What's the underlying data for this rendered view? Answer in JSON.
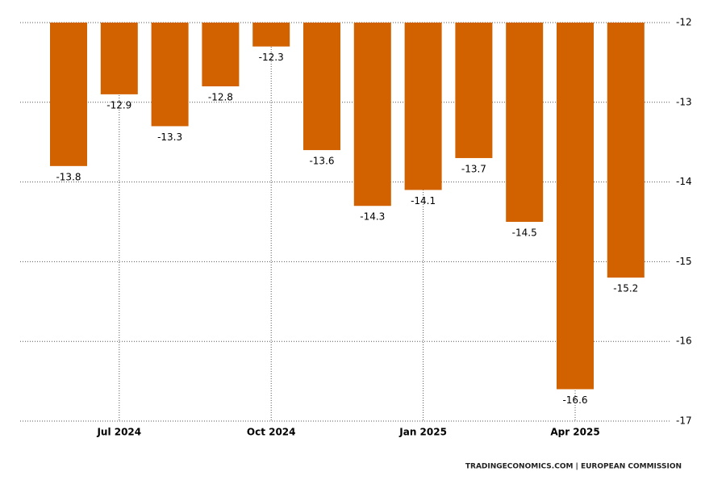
{
  "chart_data": {
    "type": "bar",
    "categories": [
      null,
      "Jul 2024",
      null,
      null,
      "Oct 2024",
      null,
      null,
      "Jan 2025",
      null,
      null,
      "Apr 2025",
      null
    ],
    "values": [
      -13.8,
      -12.9,
      -13.3,
      -12.8,
      -12.3,
      -13.6,
      -14.3,
      -14.1,
      -13.7,
      -14.5,
      -16.6,
      -15.2
    ],
    "color": "#d26200",
    "ylim": [
      -17,
      -12
    ],
    "yticks": [
      -12,
      -13,
      -14,
      -15,
      -16,
      -17
    ],
    "grid": true,
    "source": "TRADINGECONOMICS.COM | EUROPEAN COMMISSION"
  }
}
